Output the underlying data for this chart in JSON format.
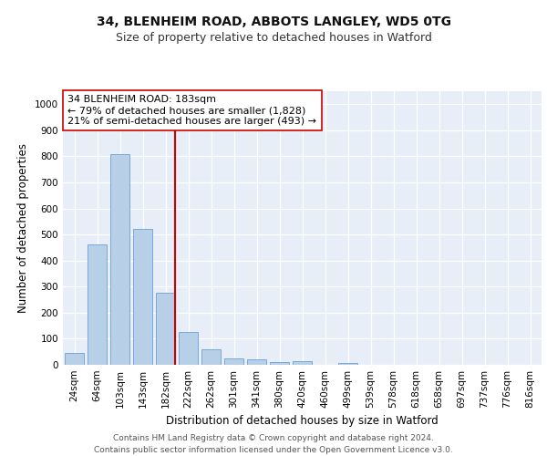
{
  "title1": "34, BLENHEIM ROAD, ABBOTS LANGLEY, WD5 0TG",
  "title2": "Size of property relative to detached houses in Watford",
  "xlabel": "Distribution of detached houses by size in Watford",
  "ylabel": "Number of detached properties",
  "categories": [
    "24sqm",
    "64sqm",
    "103sqm",
    "143sqm",
    "182sqm",
    "222sqm",
    "262sqm",
    "301sqm",
    "341sqm",
    "380sqm",
    "420sqm",
    "460sqm",
    "499sqm",
    "539sqm",
    "578sqm",
    "618sqm",
    "658sqm",
    "697sqm",
    "737sqm",
    "776sqm",
    "816sqm"
  ],
  "values": [
    45,
    462,
    810,
    520,
    275,
    125,
    58,
    25,
    20,
    12,
    14,
    0,
    8,
    0,
    0,
    0,
    0,
    0,
    0,
    0,
    0
  ],
  "bar_color": "#b8cfe8",
  "bar_edge_color": "#6a9fd8",
  "vline_color": "#cc0000",
  "vline_index": 4,
  "annotation_text": "34 BLENHEIM ROAD: 183sqm\n← 79% of detached houses are smaller (1,828)\n21% of semi-detached houses are larger (493) →",
  "annotation_box_color": "#ffffff",
  "annotation_box_edge_color": "#cc0000",
  "ylim": [
    0,
    1050
  ],
  "yticks": [
    0,
    100,
    200,
    300,
    400,
    500,
    600,
    700,
    800,
    900,
    1000
  ],
  "background_color": "#ffffff",
  "plot_bg_color": "#e8eef8",
  "grid_color": "#ffffff",
  "footer_line1": "Contains HM Land Registry data © Crown copyright and database right 2024.",
  "footer_line2": "Contains public sector information licensed under the Open Government Licence v3.0.",
  "title1_fontsize": 10,
  "title2_fontsize": 9,
  "axis_label_fontsize": 8.5,
  "tick_fontsize": 7.5,
  "annotation_fontsize": 8,
  "footer_fontsize": 6.5
}
